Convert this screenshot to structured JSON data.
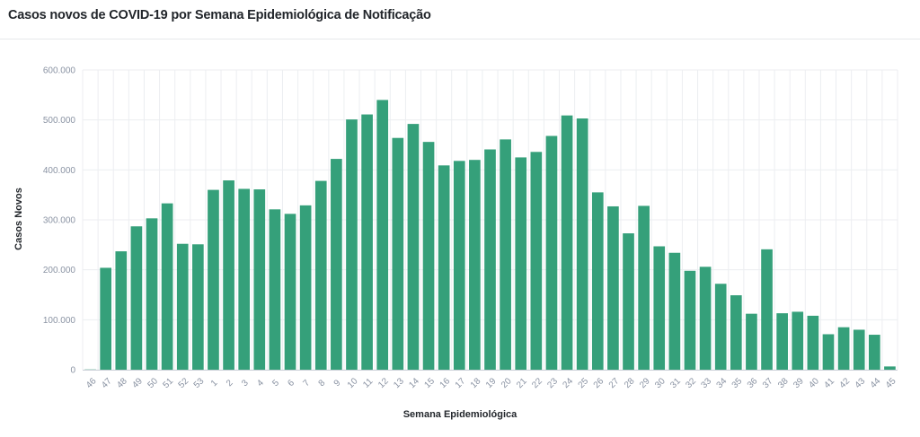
{
  "header": {
    "title": "Casos novos de COVID-19 por Semana Epidemiológica de Notificação"
  },
  "chart_data": {
    "type": "bar",
    "title": "Casos novos de COVID-19 por Semana Epidemiológica de Notificação",
    "xlabel": "Semana Epidemiológica",
    "ylabel": "Casos Novos",
    "ylim": [
      0,
      600000
    ],
    "yticks": [
      0,
      100000,
      200000,
      300000,
      400000,
      500000,
      600000
    ],
    "ytick_labels": [
      "0",
      "100.000",
      "200.000",
      "300.000",
      "400.000",
      "500.000",
      "600.000"
    ],
    "grid": true,
    "bar_color": "#35a07a",
    "categories": [
      "46",
      "47",
      "48",
      "49",
      "50",
      "51",
      "52",
      "53",
      "1",
      "2",
      "3",
      "4",
      "5",
      "6",
      "7",
      "8",
      "9",
      "10",
      "11",
      "12",
      "13",
      "14",
      "15",
      "16",
      "17",
      "18",
      "19",
      "20",
      "21",
      "22",
      "23",
      "24",
      "25",
      "26",
      "27",
      "28",
      "29",
      "30",
      "31",
      "32",
      "33",
      "34",
      "35",
      "36",
      "37",
      "38",
      "39",
      "40",
      "41",
      "42",
      "43",
      "44",
      "45"
    ],
    "values": [
      500,
      204000,
      237000,
      287000,
      303000,
      333000,
      252000,
      251000,
      360000,
      379000,
      362000,
      361000,
      321000,
      312000,
      329000,
      378000,
      422000,
      501000,
      511000,
      540000,
      464000,
      492000,
      456000,
      409000,
      418000,
      420000,
      441000,
      461000,
      425000,
      436000,
      468000,
      509000,
      503000,
      355000,
      327000,
      273000,
      328000,
      247000,
      234000,
      198000,
      206000,
      172000,
      149000,
      112000,
      241000,
      113000,
      116000,
      108000,
      71000,
      85000,
      80000,
      70000,
      6500
    ]
  }
}
